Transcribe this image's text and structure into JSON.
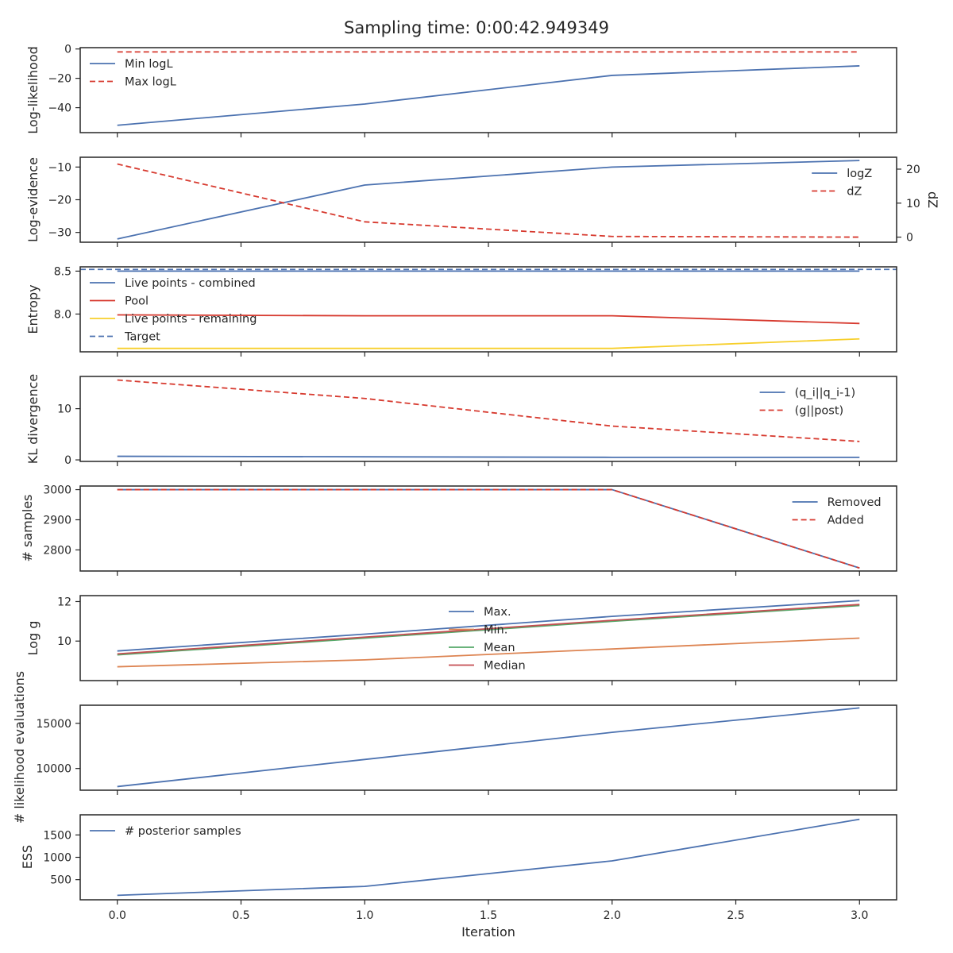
{
  "title": "Sampling time: 0:00:42.949349",
  "colors": {
    "blue": "#4c72b0",
    "red": "#d73a2f",
    "orange": "#dd8452",
    "green": "#55a868",
    "yellow": "#f7cf2b",
    "crimson": "#c44e52"
  },
  "chart_data": [
    {
      "type": "line",
      "ylabel": "Log-likelihood",
      "xlabel": "",
      "x": [
        0,
        1,
        2,
        3
      ],
      "xlim": [
        -0.15,
        3.15
      ],
      "ylim": [
        -57,
        0.9
      ],
      "yticks": [
        {
          "v": 0,
          "label": "0"
        },
        {
          "v": -20,
          "label": "−20"
        },
        {
          "v": -40,
          "label": "−40"
        }
      ],
      "legend_position": "upper-left",
      "series": [
        {
          "name": "Min logL",
          "values": [
            -52,
            -37.5,
            -18,
            -11.5
          ],
          "color": "blue",
          "dash": false,
          "axis": "left"
        },
        {
          "name": "Max logL",
          "values": [
            -2,
            -2,
            -2,
            -2
          ],
          "color": "red",
          "dash": true,
          "axis": "left"
        }
      ]
    },
    {
      "type": "line",
      "ylabel": "Log-evidence",
      "ylabel_right": "dZ",
      "xlabel": "",
      "x": [
        0,
        1,
        2,
        3
      ],
      "xlim": [
        -0.15,
        3.15
      ],
      "ylim": [
        -33,
        -7
      ],
      "yticks": [
        {
          "v": -10,
          "label": "−10"
        },
        {
          "v": -20,
          "label": "−20"
        },
        {
          "v": -30,
          "label": "−30"
        }
      ],
      "ylim_right": [
        -1.5,
        23.5
      ],
      "yticks_right": [
        {
          "v": 20,
          "label": "20"
        },
        {
          "v": 10,
          "label": "10"
        },
        {
          "v": 0,
          "label": "0"
        }
      ],
      "legend_position": "upper-right",
      "series": [
        {
          "name": "logZ",
          "values": [
            -32,
            -15.5,
            -10,
            -8
          ],
          "color": "blue",
          "dash": false,
          "axis": "left"
        },
        {
          "name": "dZ",
          "values": [
            21.5,
            4.5,
            0.2,
            0
          ],
          "color": "red",
          "dash": true,
          "axis": "right"
        }
      ]
    },
    {
      "type": "line",
      "ylabel": "Entropy",
      "xlabel": "",
      "x": [
        0,
        1,
        2,
        3
      ],
      "xlim": [
        -0.15,
        3.15
      ],
      "ylim": [
        7.56,
        8.55
      ],
      "yticks": [
        {
          "v": 8.5,
          "label": "8.5"
        },
        {
          "v": 8.0,
          "label": "8.0"
        }
      ],
      "legend_position": "upper-left",
      "series": [
        {
          "name": "Live points - combined",
          "values": [
            8.5,
            8.5,
            8.5,
            8.5
          ],
          "color": "blue",
          "dash": false,
          "axis": "left"
        },
        {
          "name": "Pool",
          "values": [
            7.99,
            7.98,
            7.98,
            7.89
          ],
          "color": "red",
          "dash": false,
          "axis": "left"
        },
        {
          "name": "Live points - remaining",
          "values": [
            7.6,
            7.6,
            7.6,
            7.71
          ],
          "color": "yellow",
          "dash": false,
          "axis": "left"
        },
        {
          "name": "Target",
          "hline": 8.52,
          "color": "blue",
          "dash": true,
          "axis": "left"
        }
      ]
    },
    {
      "type": "line",
      "ylabel": "KL divergence",
      "xlabel": "",
      "x": [
        0,
        1,
        2,
        3
      ],
      "xlim": [
        -0.15,
        3.15
      ],
      "ylim": [
        -0.3,
        16.3
      ],
      "yticks": [
        {
          "v": 10,
          "label": "10"
        },
        {
          "v": 0,
          "label": "0"
        }
      ],
      "legend_position": "upper-right",
      "series": [
        {
          "name": "(q_i||q_i-1)",
          "values": [
            0.7,
            0.6,
            0.5,
            0.5
          ],
          "color": "blue",
          "dash": false,
          "axis": "left"
        },
        {
          "name": "(g||post)",
          "values": [
            15.6,
            12,
            6.6,
            3.6
          ],
          "color": "red",
          "dash": true,
          "axis": "left"
        }
      ]
    },
    {
      "type": "line",
      "ylabel": "# samples",
      "xlabel": "",
      "x": [
        0,
        1,
        2,
        3
      ],
      "xlim": [
        -0.15,
        3.15
      ],
      "ylim": [
        2730,
        3012
      ],
      "yticks": [
        {
          "v": 3000,
          "label": "3000"
        },
        {
          "v": 2900,
          "label": "2900"
        },
        {
          "v": 2800,
          "label": "2800"
        }
      ],
      "legend_position": "upper-right",
      "series": [
        {
          "name": "Removed",
          "values": [
            3000,
            3000,
            3000,
            2740
          ],
          "color": "blue",
          "dash": false,
          "axis": "left"
        },
        {
          "name": "Added",
          "values": [
            3000,
            3000,
            3000,
            2740
          ],
          "color": "red",
          "dash": true,
          "axis": "left"
        }
      ]
    },
    {
      "type": "line",
      "ylabel": "Log g",
      "xlabel": "",
      "x": [
        0,
        1,
        2,
        3
      ],
      "xlim": [
        -0.15,
        3.15
      ],
      "ylim": [
        8.0,
        12.3
      ],
      "yticks": [
        {
          "v": 12,
          "label": "12"
        },
        {
          "v": 10,
          "label": "10"
        }
      ],
      "legend_position": "upper-center",
      "series": [
        {
          "name": "Max.",
          "values": [
            9.5,
            10.35,
            11.25,
            12.05
          ],
          "color": "blue",
          "dash": false,
          "axis": "left"
        },
        {
          "name": "Min.",
          "values": [
            8.7,
            9.05,
            9.6,
            10.15
          ],
          "color": "orange",
          "dash": false,
          "axis": "left"
        },
        {
          "name": "Mean",
          "values": [
            9.3,
            10.15,
            11.0,
            11.8
          ],
          "color": "green",
          "dash": false,
          "axis": "left"
        },
        {
          "name": "Median",
          "values": [
            9.35,
            10.2,
            11.05,
            11.85
          ],
          "color": "crimson",
          "dash": false,
          "axis": "left"
        }
      ]
    },
    {
      "type": "line",
      "ylabel": "# likelihood evaluations",
      "xlabel": "",
      "x": [
        0,
        1,
        2,
        3
      ],
      "xlim": [
        -0.15,
        3.15
      ],
      "ylim": [
        7600,
        17000
      ],
      "yticks": [
        {
          "v": 15000,
          "label": "15000"
        },
        {
          "v": 10000,
          "label": "10000"
        }
      ],
      "legend_position": "none",
      "series": [
        {
          "name": "",
          "values": [
            8000,
            11000,
            14000,
            16700
          ],
          "color": "blue",
          "dash": false,
          "axis": "left"
        }
      ]
    },
    {
      "type": "line",
      "ylabel": "ESS",
      "xlabel": "Iteration",
      "x": [
        0,
        1,
        2,
        3
      ],
      "xticks": [
        {
          "v": 0,
          "label": "0.0"
        },
        {
          "v": 0.5,
          "label": "0.5"
        },
        {
          "v": 1,
          "label": "1.0"
        },
        {
          "v": 1.5,
          "label": "1.5"
        },
        {
          "v": 2,
          "label": "2.0"
        },
        {
          "v": 2.5,
          "label": "2.5"
        },
        {
          "v": 3,
          "label": "3.0"
        }
      ],
      "xlim": [
        -0.15,
        3.15
      ],
      "ylim": [
        50,
        1950
      ],
      "yticks": [
        {
          "v": 1500,
          "label": "1500"
        },
        {
          "v": 1000,
          "label": "1000"
        },
        {
          "v": 500,
          "label": "500"
        }
      ],
      "legend_position": "upper-left",
      "series": [
        {
          "name": "# posterior samples",
          "values": [
            150,
            350,
            920,
            1850
          ],
          "color": "blue",
          "dash": false,
          "axis": "left"
        }
      ]
    }
  ]
}
